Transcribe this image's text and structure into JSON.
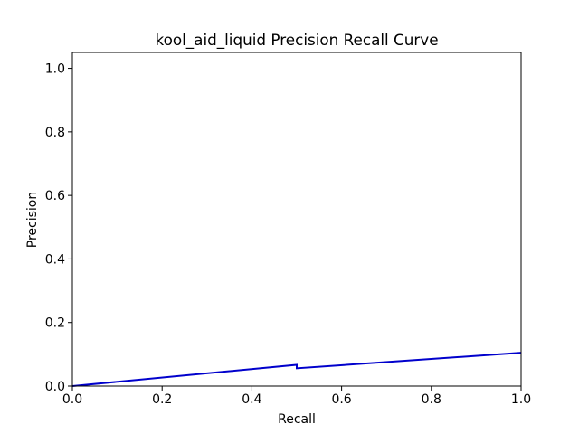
{
  "chart_data": {
    "type": "line",
    "title": "kool_aid_liquid Precision Recall Curve",
    "xlabel": "Recall",
    "ylabel": "Precision",
    "xlim": [
      0.0,
      1.0
    ],
    "ylim": [
      0.0,
      1.05
    ],
    "xticks": [
      "0.0",
      "0.2",
      "0.4",
      "0.6",
      "0.8",
      "1.0"
    ],
    "yticks": [
      "0.0",
      "0.2",
      "0.4",
      "0.6",
      "0.8",
      "1.0"
    ],
    "grid": false,
    "legend": "none",
    "series": [
      {
        "color": "#0000cc",
        "x": [
          0.0,
          0.5,
          0.5,
          1.0
        ],
        "y": [
          0.0,
          0.067,
          0.056,
          0.105
        ]
      }
    ]
  }
}
